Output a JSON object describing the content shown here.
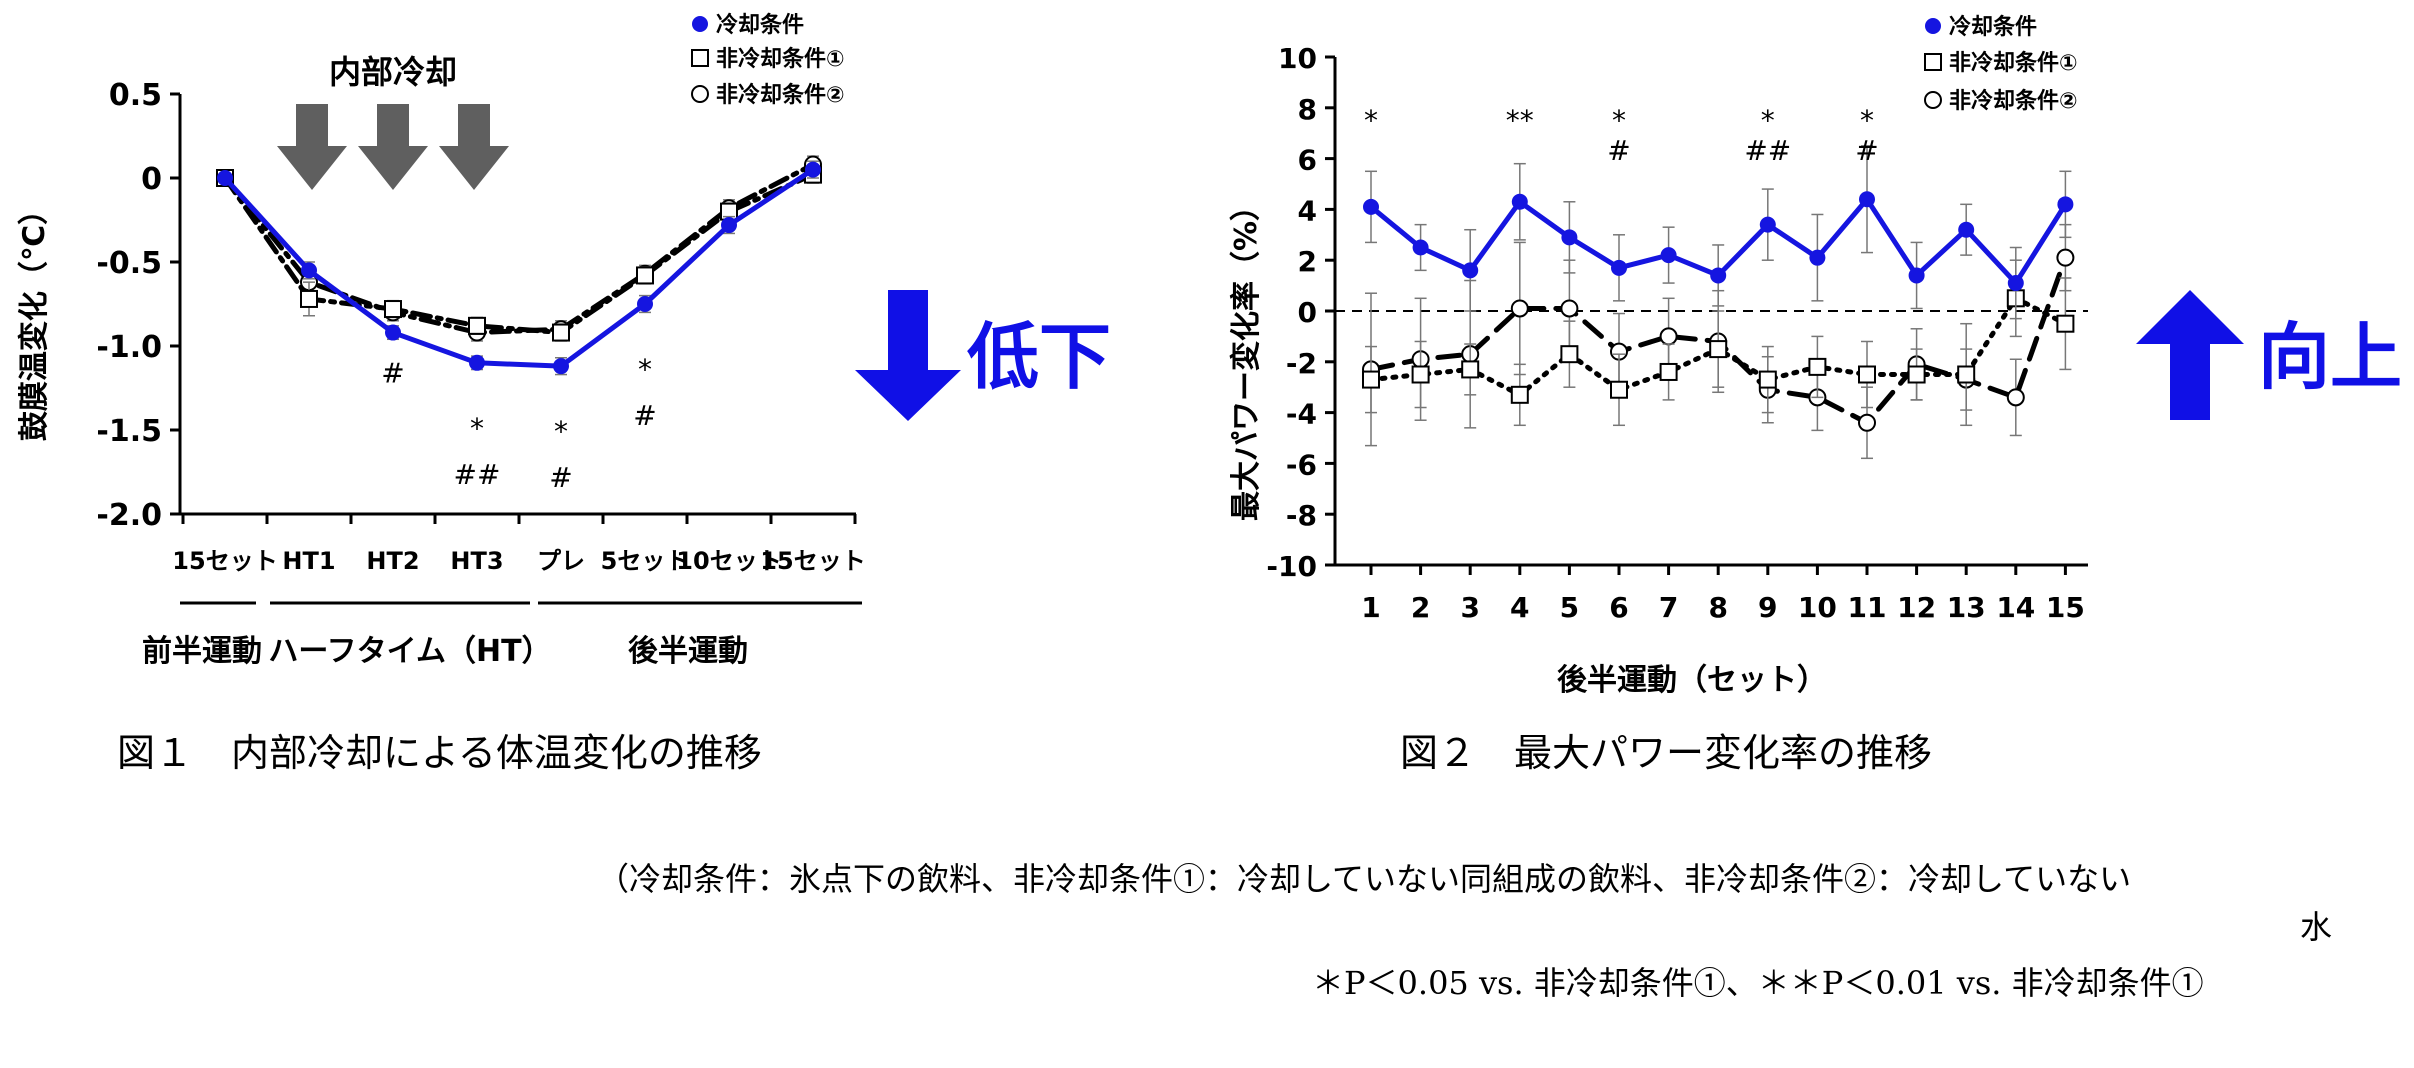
{
  "figure1": {
    "caption": "図１　内部冷却による体温変化の推移",
    "annotation_title": "内部冷却",
    "trend_label": "低下",
    "phases": [
      {
        "label": "前半運動"
      },
      {
        "label": "ハーフタイム（HT）"
      },
      {
        "label": "後半運動"
      }
    ],
    "significance": [
      {
        "index": 2,
        "lines": [
          "#"
        ]
      },
      {
        "index": 3,
        "lines": [
          "*",
          "##"
        ]
      },
      {
        "index": 4,
        "lines": [
          "*",
          "#"
        ]
      },
      {
        "index": 5,
        "lines": [
          "*",
          "#"
        ]
      }
    ]
  },
  "figure2": {
    "caption": "図２　最大パワー変化率の推移",
    "trend_label": "向上",
    "significance": [
      {
        "index": 0,
        "lines": [
          "*"
        ]
      },
      {
        "index": 3,
        "lines": [
          "**"
        ]
      },
      {
        "index": 5,
        "lines": [
          "*",
          "#"
        ]
      },
      {
        "index": 8,
        "lines": [
          "*",
          "##"
        ]
      },
      {
        "index": 10,
        "lines": [
          "*",
          "#"
        ]
      }
    ]
  },
  "notes": {
    "line1": "（冷却条件：氷点下の飲料、非冷却条件①：冷却していない同組成の飲料、非冷却条件②：冷却していない",
    "line1b": "水",
    "line2": "＊P＜0.05 vs. 非冷却条件①、＊＊P＜0.01 vs. 非冷却条件①"
  },
  "colors": {
    "cooling": "#1515e0",
    "black": "#000000",
    "arrow_gray": "#5f5f5f",
    "trend_blue": "#1010e6"
  },
  "chart_data": [
    {
      "type": "line",
      "title": "",
      "xlabel": "",
      "ylabel": "鼓膜温変化（℃）",
      "categories": [
        "15セット",
        "HT1",
        "HT2",
        "HT3",
        "プレ",
        "5セット",
        "10セット",
        "15セット"
      ],
      "ylim": [
        -2.0,
        0.5
      ],
      "yticks": [
        "0.5",
        "0",
        "-0.5",
        "-1.0",
        "-1.5",
        "-2.0"
      ],
      "legend": "top-right",
      "series": [
        {
          "name": "冷却条件",
          "marker": "filled-circle",
          "style": "solid",
          "color": "#1515e0",
          "values": [
            0,
            -0.55,
            -0.92,
            -1.1,
            -1.12,
            -0.75,
            -0.28,
            0.05
          ],
          "err": [
            0,
            0.05,
            0.04,
            0.04,
            0.05,
            0.05,
            0.05,
            0.05
          ]
        },
        {
          "name": "非冷却条件①",
          "marker": "open-square",
          "style": "dash-dot",
          "color": "#000000",
          "values": [
            0,
            -0.72,
            -0.78,
            -0.88,
            -0.92,
            -0.58,
            -0.2,
            0.02
          ],
          "err": [
            0,
            0.1,
            0.05,
            0.05,
            0.05,
            0.05,
            0.05,
            0.05
          ]
        },
        {
          "name": "非冷却条件②",
          "marker": "open-circle",
          "style": "dash-dot",
          "color": "#000000",
          "values": [
            0,
            -0.62,
            -0.8,
            -0.92,
            -0.9,
            -0.57,
            -0.18,
            0.08
          ],
          "err": [
            0,
            0.08,
            0.05,
            0.05,
            0.05,
            0.05,
            0.05,
            0.05
          ]
        }
      ]
    },
    {
      "type": "line",
      "title": "",
      "xlabel": "後半運動（セット）",
      "ylabel": "最大パワー変化率（%）",
      "categories": [
        "1",
        "2",
        "3",
        "4",
        "5",
        "6",
        "7",
        "8",
        "9",
        "10",
        "11",
        "12",
        "13",
        "14",
        "15"
      ],
      "ylim": [
        -10,
        10
      ],
      "yticks": [
        "10",
        "8",
        "6",
        "4",
        "2",
        "0",
        "-2",
        "-4",
        "-6",
        "-8",
        "-10"
      ],
      "legend": "top-right",
      "reference_line": 0,
      "series": [
        {
          "name": "冷却条件",
          "marker": "filled-circle",
          "style": "solid",
          "color": "#1515e0",
          "values": [
            4.1,
            2.5,
            1.6,
            4.3,
            2.9,
            1.7,
            2.2,
            1.4,
            3.4,
            2.1,
            4.4,
            1.4,
            3.2,
            1.1,
            4.2
          ],
          "err": [
            1.4,
            0.9,
            1.6,
            1.5,
            1.4,
            1.3,
            1.1,
            1.2,
            1.4,
            1.7,
            2.1,
            1.3,
            1.0,
            1.4,
            1.3
          ]
        },
        {
          "name": "非冷却条件①",
          "marker": "open-square",
          "style": "dotted",
          "color": "#000000",
          "values": [
            -2.7,
            -2.5,
            -2.3,
            -3.3,
            -1.7,
            -3.1,
            -2.4,
            -1.5,
            -2.7,
            -2.2,
            -2.5,
            -2.5,
            -2.5,
            0.5,
            -0.5
          ],
          "err": [
            1.3,
            1.3,
            1.0,
            1.2,
            1.3,
            1.4,
            1.1,
            1.5,
            1.3,
            1.2,
            1.3,
            1.0,
            2.0,
            1.5,
            1.8
          ]
        },
        {
          "name": "非冷却条件②",
          "marker": "open-circle",
          "style": "dashed",
          "color": "#000000",
          "values": [
            -2.3,
            -1.9,
            -1.7,
            0.1,
            0.1,
            -1.6,
            -1.0,
            -1.2,
            -3.1,
            -3.4,
            -4.4,
            -2.1,
            -2.7,
            -3.4,
            2.1
          ],
          "err": [
            3.0,
            2.4,
            2.9,
            2.6,
            1.9,
            1.5,
            1.5,
            2.0,
            1.3,
            1.3,
            1.4,
            1.4,
            1.2,
            1.5,
            1.3
          ]
        }
      ]
    }
  ]
}
